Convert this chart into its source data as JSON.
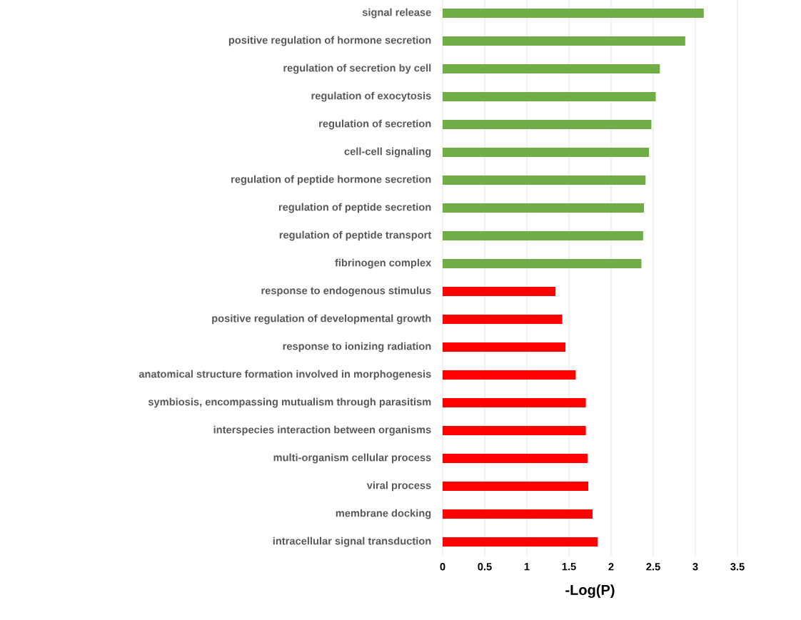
{
  "chart_data": {
    "type": "bar",
    "orientation": "horizontal",
    "categories": [
      "signal release",
      "positive regulation of hormone secretion",
      "regulation of secretion by cell",
      "regulation of exocytosis",
      "regulation of secretion",
      "cell-cell signaling",
      "regulation of peptide hormone secretion",
      "regulation of peptide secretion",
      "regulation of peptide transport",
      "fibrinogen complex",
      "response to endogenous stimulus",
      "positive regulation of developmental growth",
      "response to ionizing radiation",
      "anatomical structure formation involved in morphogenesis",
      "symbiosis, encompassing mutualism through parasitism",
      "interspecies interaction between organisms",
      "multi-organism cellular process",
      "viral process",
      "membrane docking",
      "intracellular signal transduction"
    ],
    "values": [
      3.1,
      2.88,
      2.58,
      2.53,
      2.48,
      2.45,
      2.41,
      2.39,
      2.38,
      2.36,
      1.34,
      1.42,
      1.46,
      1.58,
      1.7,
      1.7,
      1.72,
      1.73,
      1.78,
      1.84
    ],
    "colors": [
      "#70ad47",
      "#70ad47",
      "#70ad47",
      "#70ad47",
      "#70ad47",
      "#70ad47",
      "#70ad47",
      "#70ad47",
      "#70ad47",
      "#70ad47",
      "#ff0000",
      "#ff0000",
      "#ff0000",
      "#ff0000",
      "#ff0000",
      "#ff0000",
      "#ff0000",
      "#ff0000",
      "#ff0000",
      "#ff0000"
    ],
    "xlabel": "-Log(P)",
    "xlim": [
      0,
      3.5
    ],
    "xticks": [
      0,
      0.5,
      1,
      1.5,
      2,
      2.5,
      3,
      3.5
    ],
    "grid": "x"
  }
}
